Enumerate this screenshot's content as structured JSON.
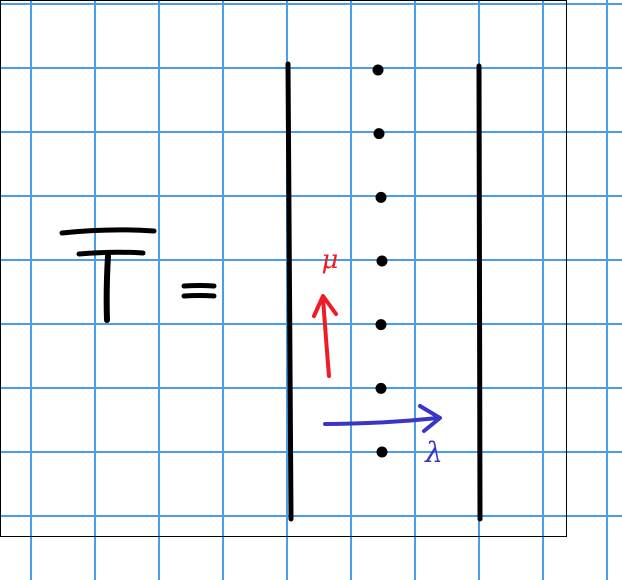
{
  "diagram": {
    "colors": {
      "grid": "#4a9ee8",
      "ink": "#000000",
      "mu": "#ee1c24",
      "lambda": "#3a35c4",
      "frame": "#000000"
    },
    "equation": {
      "symbol": "T",
      "equals": "="
    },
    "dots": {
      "count": 7
    },
    "labels": {
      "mu": "μ",
      "lambda": "λ"
    }
  }
}
